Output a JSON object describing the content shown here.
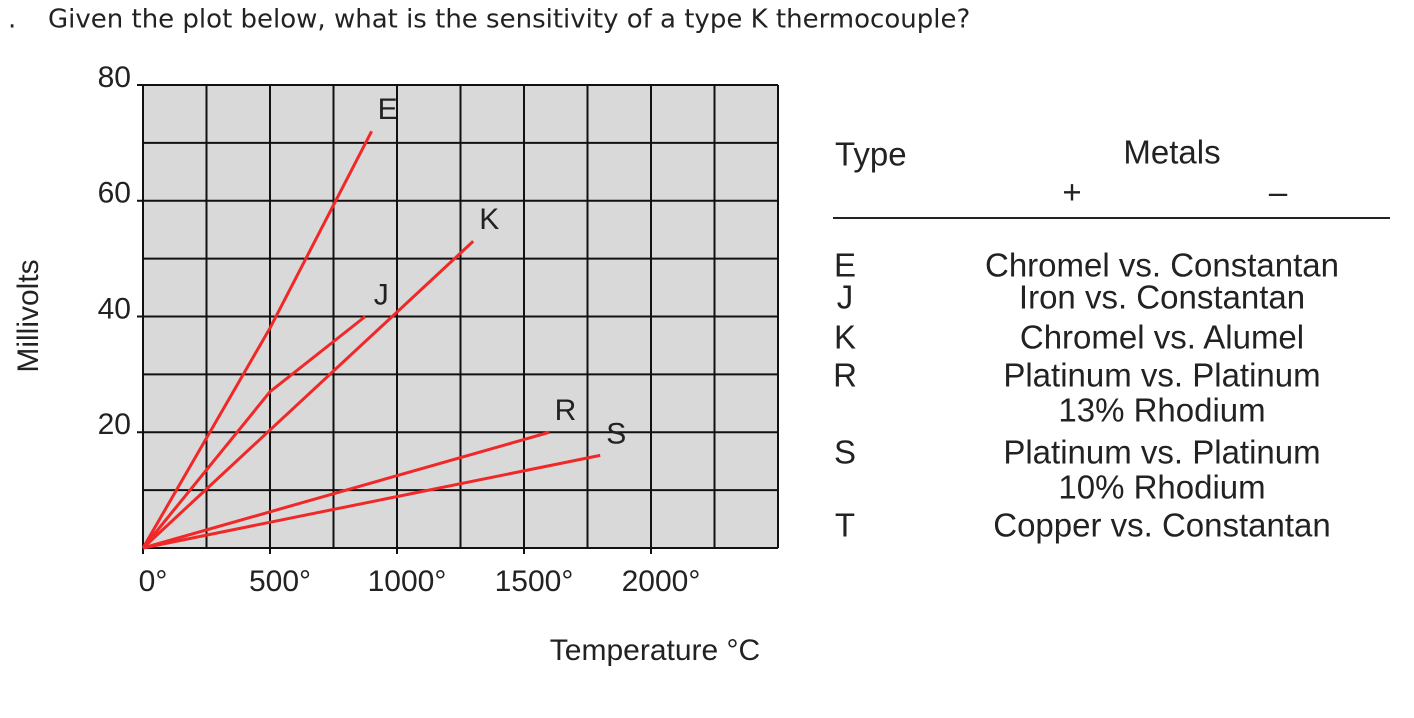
{
  "question": {
    "bullet": ".",
    "text": "Given the plot below, what is the sensitivity of a type K thermocouple?"
  },
  "chart_data": {
    "type": "line",
    "x_label": "Temperature °C",
    "y_label": "Millivolts",
    "xlim": [
      0,
      2500
    ],
    "ylim": [
      0,
      80
    ],
    "xticks": [
      {
        "value": 0,
        "label": "0°"
      },
      {
        "value": 500,
        "label": "500°"
      },
      {
        "value": 1000,
        "label": "1000°"
      },
      {
        "value": 1500,
        "label": "1500°"
      },
      {
        "value": 2000,
        "label": "2000°"
      }
    ],
    "yticks": [
      20,
      40,
      60,
      80
    ],
    "grid": true,
    "grid_step": {
      "x": 250,
      "y": 10
    },
    "background": "#d9d9d9",
    "series": [
      {
        "name": "E",
        "color": "#f02828",
        "x": [
          0,
          500,
          900
        ],
        "values": [
          0,
          38,
          72
        ]
      },
      {
        "name": "J",
        "color": "#f02828",
        "x": [
          0,
          500,
          875
        ],
        "values": [
          0,
          27,
          40
        ]
      },
      {
        "name": "K",
        "color": "#f02828",
        "x": [
          0,
          1300
        ],
        "values": [
          0,
          53
        ]
      },
      {
        "name": "R",
        "color": "#f02828",
        "x": [
          0,
          1600
        ],
        "values": [
          0,
          20
        ]
      },
      {
        "name": "S",
        "color": "#f02828",
        "x": [
          0,
          1800
        ],
        "values": [
          0,
          16
        ]
      }
    ]
  },
  "table": {
    "headers": [
      "Type",
      "Metals",
      "+",
      "–"
    ],
    "rows": [
      {
        "type": "E",
        "metals": [
          "Chromel vs. Constantan"
        ]
      },
      {
        "type": "J",
        "metals": [
          "Iron vs. Constantan"
        ]
      },
      {
        "type": "K",
        "metals": [
          "Chromel vs. Alumel"
        ]
      },
      {
        "type": "R",
        "metals": [
          "Platinum vs. Platinum",
          "13% Rhodium"
        ]
      },
      {
        "type": "S",
        "metals": [
          "Platinum vs. Platinum",
          "10% Rhodium"
        ]
      },
      {
        "type": "T",
        "metals": [
          "Copper vs. Constantan"
        ]
      }
    ]
  }
}
